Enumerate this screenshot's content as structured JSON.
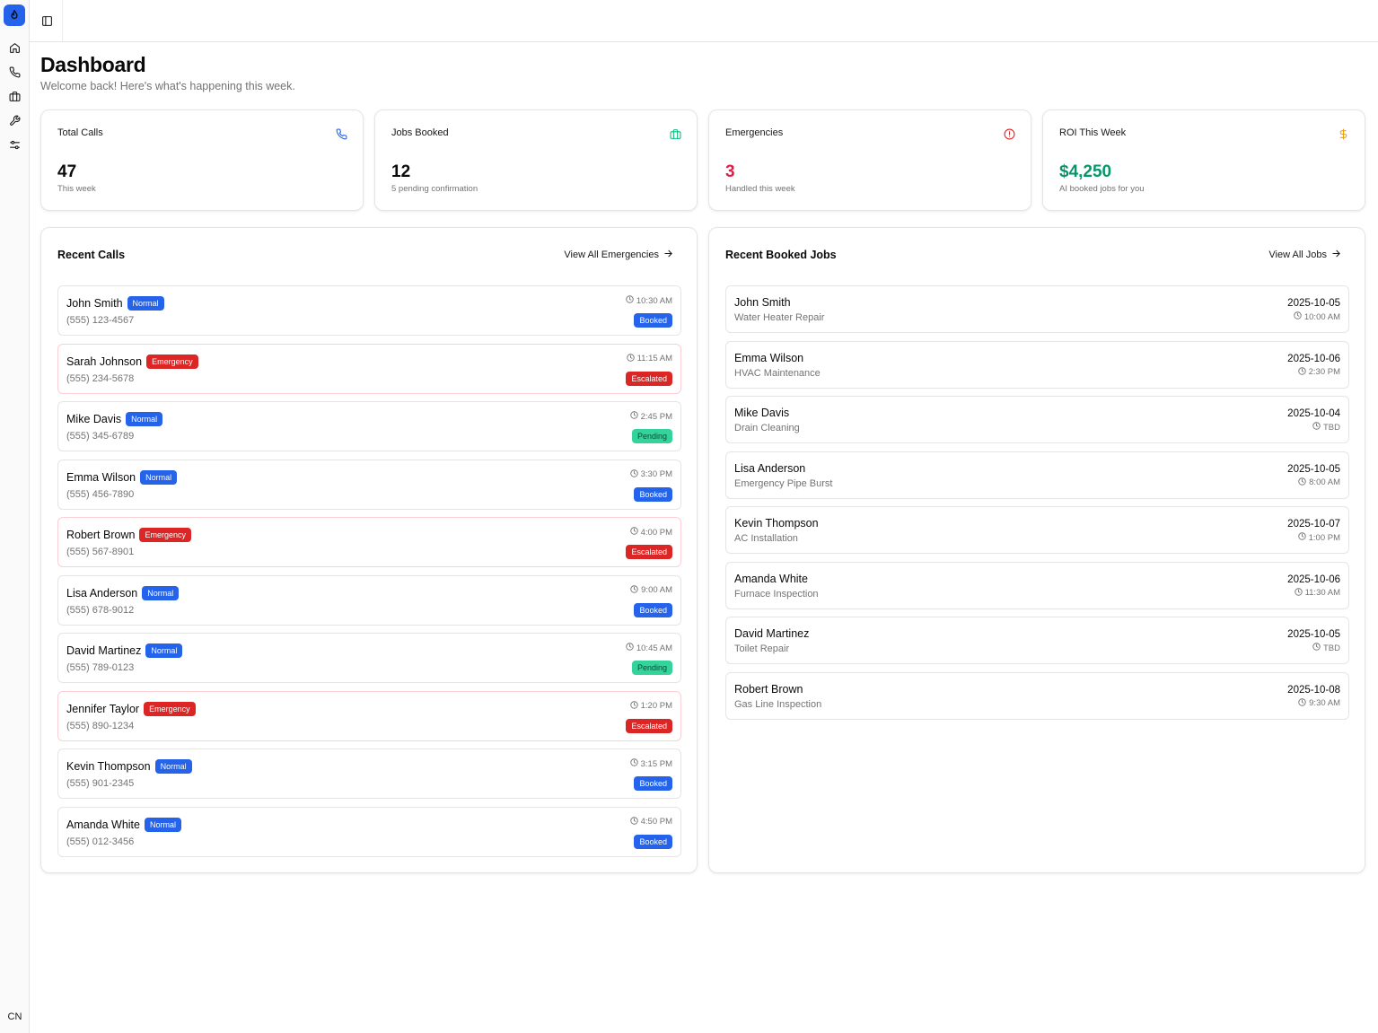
{
  "sidebar": {
    "logo_icon": "flame-icon",
    "nav": [
      {
        "name": "home-icon"
      },
      {
        "name": "phone-icon"
      },
      {
        "name": "briefcase-icon"
      },
      {
        "name": "wrench-icon"
      },
      {
        "name": "settings-sliders-icon"
      }
    ],
    "user_initials": "CN"
  },
  "header": {
    "title": "Dashboard",
    "subtitle": "Welcome back! Here's what's happening this week."
  },
  "stats": [
    {
      "label": "Total Calls",
      "value": "47",
      "sub": "This week",
      "icon": "phone-icon",
      "color": "#2563eb"
    },
    {
      "label": "Jobs Booked",
      "value": "12",
      "sub": "5 pending confirmation",
      "icon": "briefcase-icon",
      "color": "#10b981"
    },
    {
      "label": "Emergencies",
      "value": "3",
      "sub": "Handled this week",
      "icon": "alert-circle-icon",
      "color": "#dc2626"
    },
    {
      "label": "ROI This Week",
      "value": "$4,250",
      "sub": "AI booked jobs for you",
      "icon": "dollar-icon",
      "color": "#059669"
    }
  ],
  "recent_calls": {
    "title": "Recent Calls",
    "link": "View All Emergencies",
    "items": [
      {
        "name": "John Smith",
        "priority": "Normal",
        "phone": "(555) 123-4567",
        "time": "10:30 AM",
        "status": "Booked"
      },
      {
        "name": "Sarah Johnson",
        "priority": "Emergency",
        "phone": "(555) 234-5678",
        "time": "11:15 AM",
        "status": "Escalated"
      },
      {
        "name": "Mike Davis",
        "priority": "Normal",
        "phone": "(555) 345-6789",
        "time": "2:45 PM",
        "status": "Pending"
      },
      {
        "name": "Emma Wilson",
        "priority": "Normal",
        "phone": "(555) 456-7890",
        "time": "3:30 PM",
        "status": "Booked"
      },
      {
        "name": "Robert Brown",
        "priority": "Emergency",
        "phone": "(555) 567-8901",
        "time": "4:00 PM",
        "status": "Escalated"
      },
      {
        "name": "Lisa Anderson",
        "priority": "Normal",
        "phone": "(555) 678-9012",
        "time": "9:00 AM",
        "status": "Booked"
      },
      {
        "name": "David Martinez",
        "priority": "Normal",
        "phone": "(555) 789-0123",
        "time": "10:45 AM",
        "status": "Pending"
      },
      {
        "name": "Jennifer Taylor",
        "priority": "Emergency",
        "phone": "(555) 890-1234",
        "time": "1:20 PM",
        "status": "Escalated"
      },
      {
        "name": "Kevin Thompson",
        "priority": "Normal",
        "phone": "(555) 901-2345",
        "time": "3:15 PM",
        "status": "Booked"
      },
      {
        "name": "Amanda White",
        "priority": "Normal",
        "phone": "(555) 012-3456",
        "time": "4:50 PM",
        "status": "Booked"
      }
    ]
  },
  "recent_jobs": {
    "title": "Recent Booked Jobs",
    "link": "View All Jobs",
    "items": [
      {
        "name": "John Smith",
        "service": "Water Heater Repair",
        "date": "2025-10-05",
        "time": "10:00 AM"
      },
      {
        "name": "Emma Wilson",
        "service": "HVAC Maintenance",
        "date": "2025-10-06",
        "time": "2:30 PM"
      },
      {
        "name": "Mike Davis",
        "service": "Drain Cleaning",
        "date": "2025-10-04",
        "time": "TBD"
      },
      {
        "name": "Lisa Anderson",
        "service": "Emergency Pipe Burst",
        "date": "2025-10-05",
        "time": "8:00 AM"
      },
      {
        "name": "Kevin Thompson",
        "service": "AC Installation",
        "date": "2025-10-07",
        "time": "1:00 PM"
      },
      {
        "name": "Amanda White",
        "service": "Furnace Inspection",
        "date": "2025-10-06",
        "time": "11:30 AM"
      },
      {
        "name": "David Martinez",
        "service": "Toilet Repair",
        "date": "2025-10-05",
        "time": "TBD"
      },
      {
        "name": "Robert Brown",
        "service": "Gas Line Inspection",
        "date": "2025-10-08",
        "time": "9:30 AM"
      }
    ]
  }
}
